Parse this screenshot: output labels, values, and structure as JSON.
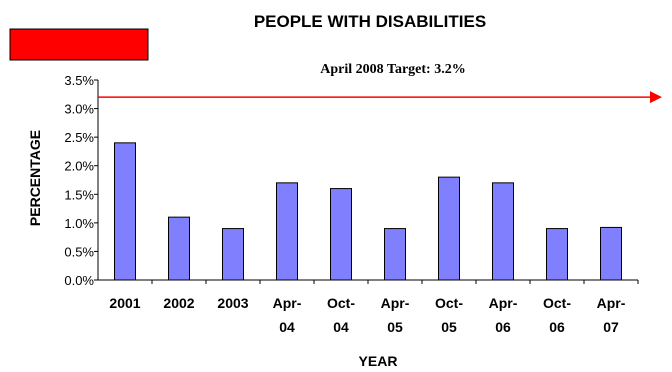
{
  "chart_data": {
    "type": "bar",
    "title": "PEOPLE WITH DISABILITIES",
    "xlabel": "YEAR",
    "ylabel": "PERCENTAGE",
    "ylim": [
      0,
      3.5
    ],
    "yticks": [
      "0.0%",
      "0.5%",
      "1.0%",
      "1.5%",
      "2.0%",
      "2.5%",
      "3.0%",
      "3.5%"
    ],
    "ytick_values": [
      0,
      0.5,
      1.0,
      1.5,
      2.0,
      2.5,
      3.0,
      3.5
    ],
    "categories": [
      [
        "2001"
      ],
      [
        "2002"
      ],
      [
        "2003"
      ],
      [
        "Apr-",
        "04"
      ],
      [
        "Oct-",
        "04"
      ],
      [
        "Apr-",
        "05"
      ],
      [
        "Oct-",
        "05"
      ],
      [
        "Apr-",
        "06"
      ],
      [
        "Oct-",
        "06"
      ],
      [
        "Apr-",
        "07"
      ]
    ],
    "values": [
      2.4,
      1.1,
      0.9,
      1.7,
      1.6,
      0.9,
      1.8,
      1.7,
      0.9,
      0.92
    ],
    "grid": false,
    "target": {
      "label": "April 2008 Target: 3.2%",
      "value": 3.2,
      "color": "#ff0000"
    },
    "legend_swatch_color": "#ff0000",
    "bar_color": "#8080ff"
  }
}
